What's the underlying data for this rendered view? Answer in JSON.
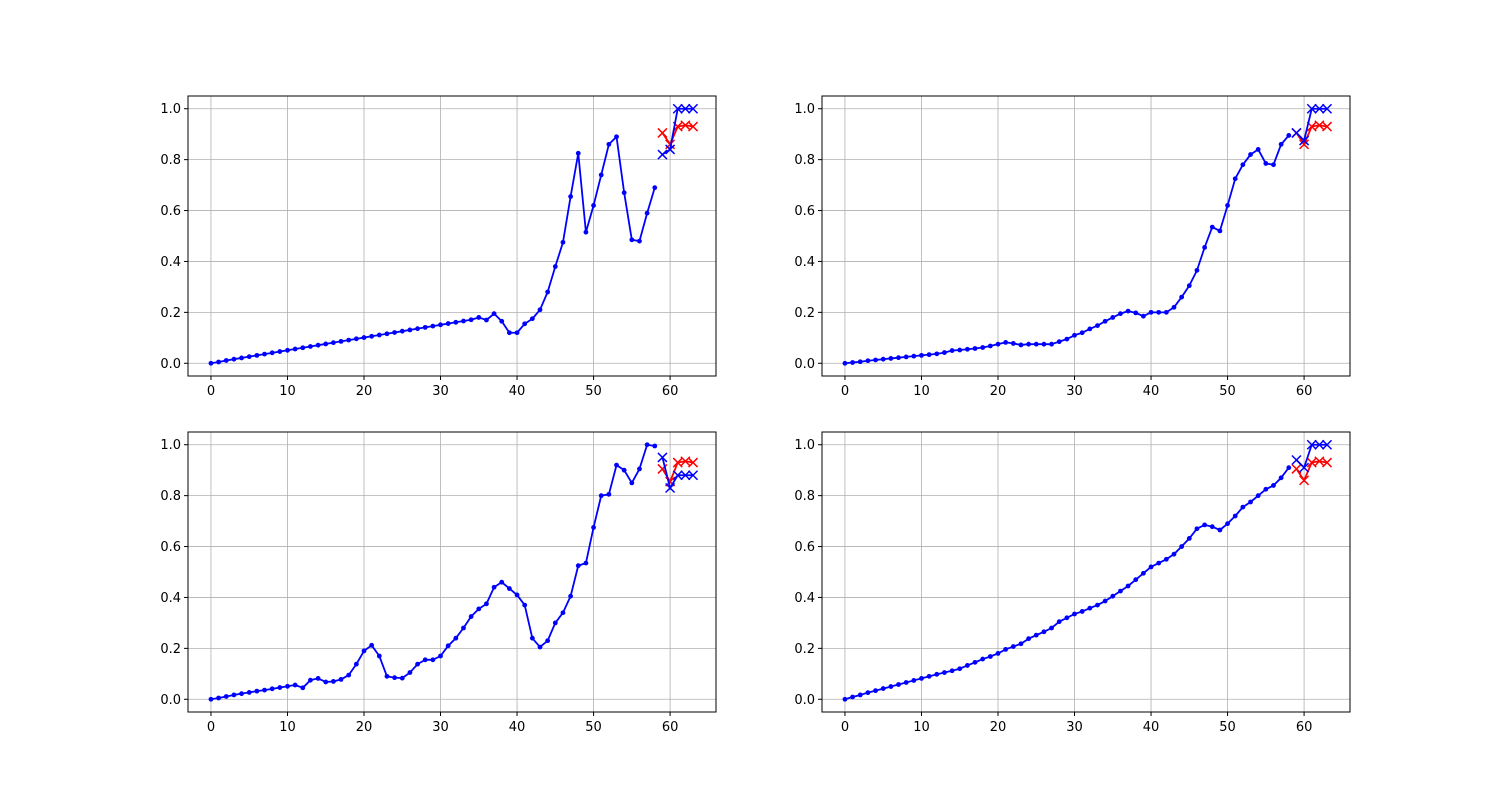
{
  "chart_data": [
    {
      "type": "line",
      "grid": true,
      "xlim": [
        -3,
        66
      ],
      "ylim": [
        -0.05,
        1.05
      ],
      "xticks": [
        "0",
        "10",
        "20",
        "30",
        "40",
        "50",
        "60"
      ],
      "yticks": [
        "0.0",
        "0.2",
        "0.4",
        "0.6",
        "0.8",
        "1.0"
      ],
      "line_series": {
        "color": "#0000ff",
        "x_start": 0,
        "values": [
          0.0,
          0.005,
          0.011,
          0.016,
          0.021,
          0.026,
          0.031,
          0.036,
          0.041,
          0.046,
          0.051,
          0.056,
          0.061,
          0.066,
          0.071,
          0.076,
          0.081,
          0.086,
          0.091,
          0.096,
          0.101,
          0.106,
          0.111,
          0.116,
          0.121,
          0.126,
          0.131,
          0.136,
          0.141,
          0.146,
          0.151,
          0.156,
          0.161,
          0.166,
          0.171,
          0.18,
          0.17,
          0.195,
          0.165,
          0.12,
          0.12,
          0.155,
          0.175,
          0.21,
          0.28,
          0.38,
          0.475,
          0.655,
          0.825,
          0.515,
          0.62,
          0.74,
          0.86,
          0.89,
          0.67,
          0.485,
          0.48,
          0.59,
          0.69
        ]
      },
      "red_series": {
        "color": "#ff0000",
        "x": [
          59,
          60,
          61,
          62,
          63
        ],
        "values": [
          0.905,
          0.86,
          0.93,
          0.935,
          0.93
        ]
      },
      "blue_series": {
        "color": "#0000ff",
        "x": [
          59,
          60,
          61,
          62,
          63
        ],
        "values": [
          0.82,
          0.84,
          1.0,
          1.0,
          1.0
        ]
      }
    },
    {
      "type": "line",
      "grid": true,
      "xlim": [
        -3,
        66
      ],
      "ylim": [
        -0.05,
        1.05
      ],
      "xticks": [
        "0",
        "10",
        "20",
        "30",
        "40",
        "50",
        "60"
      ],
      "yticks": [
        "0.0",
        "0.2",
        "0.4",
        "0.6",
        "0.8",
        "1.0"
      ],
      "line_series": {
        "color": "#0000ff",
        "x_start": 0,
        "values": [
          0.0,
          0.003,
          0.006,
          0.01,
          0.013,
          0.016,
          0.019,
          0.022,
          0.025,
          0.028,
          0.031,
          0.034,
          0.037,
          0.042,
          0.05,
          0.052,
          0.055,
          0.058,
          0.062,
          0.068,
          0.075,
          0.082,
          0.078,
          0.072,
          0.075,
          0.075,
          0.075,
          0.075,
          0.085,
          0.095,
          0.11,
          0.12,
          0.135,
          0.148,
          0.165,
          0.18,
          0.195,
          0.205,
          0.198,
          0.185,
          0.2,
          0.2,
          0.2,
          0.22,
          0.26,
          0.305,
          0.365,
          0.455,
          0.535,
          0.52,
          0.62,
          0.725,
          0.78,
          0.82,
          0.84,
          0.785,
          0.78,
          0.86,
          0.895
        ]
      },
      "red_series": {
        "color": "#ff0000",
        "x": [
          59,
          60,
          61,
          62,
          63
        ],
        "values": [
          0.905,
          0.86,
          0.93,
          0.935,
          0.93
        ]
      },
      "blue_series": {
        "color": "#0000ff",
        "x": [
          59,
          60,
          61,
          62,
          63
        ],
        "values": [
          0.905,
          0.875,
          1.0,
          1.0,
          1.0
        ]
      }
    },
    {
      "type": "line",
      "grid": true,
      "xlim": [
        -3,
        66
      ],
      "ylim": [
        -0.05,
        1.05
      ],
      "xticks": [
        "0",
        "10",
        "20",
        "30",
        "40",
        "50",
        "60"
      ],
      "yticks": [
        "0.0",
        "0.2",
        "0.4",
        "0.6",
        "0.8",
        "1.0"
      ],
      "line_series": {
        "color": "#0000ff",
        "x_start": 0,
        "values": [
          0.0,
          0.005,
          0.011,
          0.017,
          0.022,
          0.027,
          0.032,
          0.036,
          0.041,
          0.046,
          0.051,
          0.056,
          0.045,
          0.075,
          0.082,
          0.068,
          0.07,
          0.078,
          0.095,
          0.138,
          0.19,
          0.212,
          0.17,
          0.09,
          0.085,
          0.083,
          0.105,
          0.138,
          0.155,
          0.155,
          0.17,
          0.21,
          0.24,
          0.28,
          0.325,
          0.355,
          0.375,
          0.44,
          0.46,
          0.435,
          0.41,
          0.37,
          0.24,
          0.205,
          0.23,
          0.3,
          0.34,
          0.405,
          0.525,
          0.535,
          0.675,
          0.8,
          0.805,
          0.92,
          0.9,
          0.85,
          0.905,
          1.0,
          0.995
        ]
      },
      "red_series": {
        "color": "#ff0000",
        "x": [
          59,
          60,
          61,
          62,
          63
        ],
        "values": [
          0.905,
          0.855,
          0.93,
          0.935,
          0.93
        ]
      },
      "blue_series": {
        "color": "#0000ff",
        "x": [
          59,
          60,
          61,
          62,
          63
        ],
        "values": [
          0.95,
          0.83,
          0.88,
          0.88,
          0.88
        ]
      }
    },
    {
      "type": "line",
      "grid": true,
      "xlim": [
        -3,
        66
      ],
      "ylim": [
        -0.05,
        1.05
      ],
      "xticks": [
        "0",
        "10",
        "20",
        "30",
        "40",
        "50",
        "60"
      ],
      "yticks": [
        "0.0",
        "0.2",
        "0.4",
        "0.6",
        "0.8",
        "1.0"
      ],
      "line_series": {
        "color": "#0000ff",
        "x_start": 0,
        "values": [
          0.0,
          0.009,
          0.017,
          0.026,
          0.034,
          0.042,
          0.05,
          0.058,
          0.066,
          0.074,
          0.082,
          0.09,
          0.098,
          0.105,
          0.112,
          0.12,
          0.133,
          0.145,
          0.158,
          0.168,
          0.18,
          0.196,
          0.207,
          0.218,
          0.238,
          0.252,
          0.265,
          0.28,
          0.305,
          0.32,
          0.335,
          0.345,
          0.358,
          0.37,
          0.386,
          0.405,
          0.425,
          0.445,
          0.47,
          0.495,
          0.52,
          0.535,
          0.55,
          0.57,
          0.6,
          0.632,
          0.67,
          0.685,
          0.678,
          0.665,
          0.69,
          0.72,
          0.755,
          0.775,
          0.8,
          0.825,
          0.84,
          0.87,
          0.91
        ]
      },
      "red_series": {
        "color": "#ff0000",
        "x": [
          59,
          60,
          61,
          62,
          63
        ],
        "values": [
          0.905,
          0.86,
          0.93,
          0.935,
          0.93
        ]
      },
      "blue_series": {
        "color": "#0000ff",
        "x": [
          59,
          60,
          61,
          62,
          63
        ],
        "values": [
          0.94,
          0.91,
          1.0,
          1.0,
          1.0
        ]
      }
    }
  ]
}
